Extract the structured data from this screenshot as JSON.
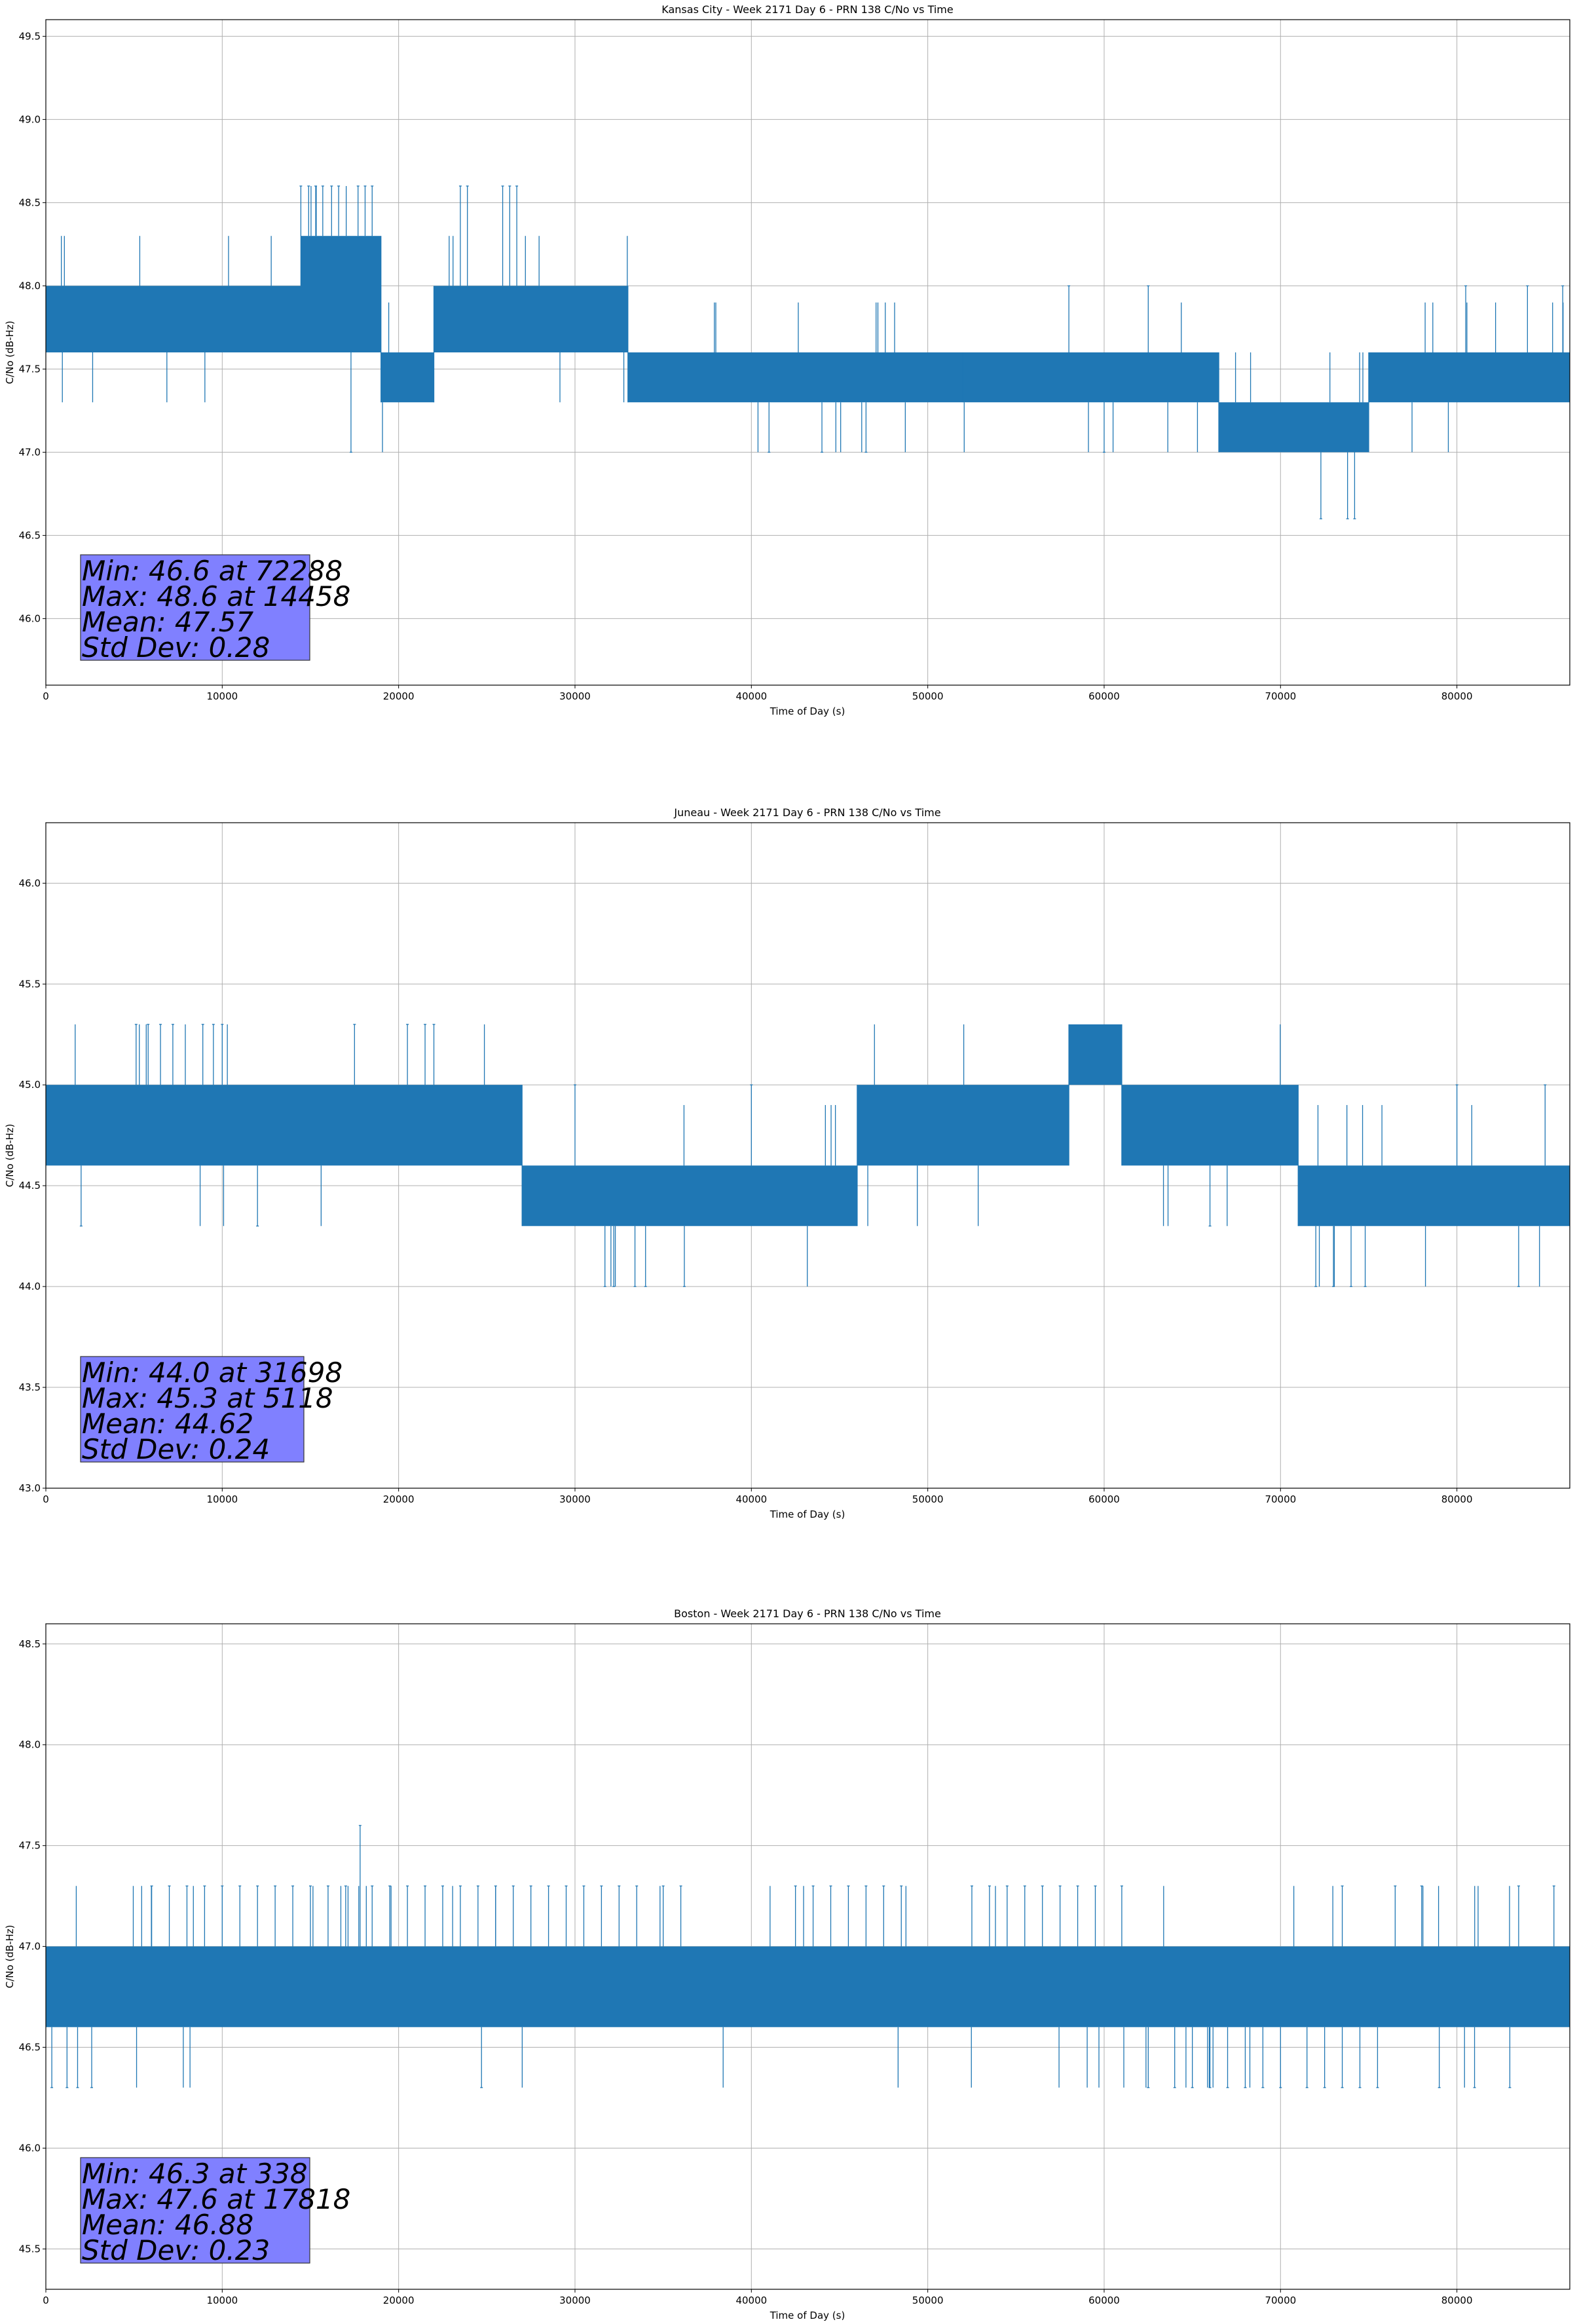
{
  "chart_data": [
    {
      "type": "line",
      "title": "Kansas City - Week 2171 Day 6 - PRN 138 C/No vs Time",
      "xlabel": "Time of Day (s)",
      "ylabel": "C/No (dB-Hz)",
      "xlim": [
        0,
        86400
      ],
      "ylim": [
        45.6,
        49.6
      ],
      "xticks": [
        0,
        10000,
        20000,
        30000,
        40000,
        50000,
        60000,
        70000,
        80000
      ],
      "xtick_labels": [
        "0",
        "10000",
        "20000",
        "30000",
        "40000",
        "50000",
        "60000",
        "70000",
        "80000"
      ],
      "yticks": [
        46.0,
        46.5,
        47.0,
        47.5,
        48.0,
        48.5,
        49.0,
        49.5
      ],
      "ytick_labels": [
        "46.0",
        "46.5",
        "47.0",
        "47.5",
        "48.0",
        "48.5",
        "49.0",
        "49.5"
      ],
      "grid": true,
      "series_color": "#1f77b4",
      "segments": [
        {
          "start": 0,
          "end": 14500,
          "low": 47.6,
          "high": 48.0
        },
        {
          "start": 14500,
          "end": 19000,
          "low": 47.6,
          "high": 48.3
        },
        {
          "start": 19000,
          "end": 22000,
          "low": 47.3,
          "high": 47.6
        },
        {
          "start": 22000,
          "end": 33000,
          "low": 47.6,
          "high": 48.0
        },
        {
          "start": 33000,
          "end": 52000,
          "low": 47.3,
          "high": 47.6
        },
        {
          "start": 52000,
          "end": 66500,
          "low": 47.3,
          "high": 47.6
        },
        {
          "start": 66500,
          "end": 75000,
          "low": 47.0,
          "high": 47.3
        },
        {
          "start": 75000,
          "end": 86400,
          "low": 47.3,
          "high": 47.6
        }
      ],
      "spikes": [
        {
          "x": 14458,
          "y": 48.6
        },
        {
          "x": 14900,
          "y": 48.6
        },
        {
          "x": 15300,
          "y": 48.6
        },
        {
          "x": 15700,
          "y": 48.6
        },
        {
          "x": 16200,
          "y": 48.6
        },
        {
          "x": 16600,
          "y": 48.6
        },
        {
          "x": 17700,
          "y": 48.6
        },
        {
          "x": 18100,
          "y": 48.6
        },
        {
          "x": 18500,
          "y": 48.6
        },
        {
          "x": 23500,
          "y": 48.6
        },
        {
          "x": 23900,
          "y": 48.6
        },
        {
          "x": 25900,
          "y": 48.6
        },
        {
          "x": 26300,
          "y": 48.6
        },
        {
          "x": 26700,
          "y": 48.6
        },
        {
          "x": 17300,
          "y": 47.0
        },
        {
          "x": 72288,
          "y": 46.6
        },
        {
          "x": 73800,
          "y": 46.6
        },
        {
          "x": 74200,
          "y": 46.6
        },
        {
          "x": 58000,
          "y": 48.0
        },
        {
          "x": 62500,
          "y": 48.0
        },
        {
          "x": 80500,
          "y": 48.0
        },
        {
          "x": 84000,
          "y": 48.0
        },
        {
          "x": 86000,
          "y": 48.0
        },
        {
          "x": 41000,
          "y": 47.0
        },
        {
          "x": 44000,
          "y": 47.0
        },
        {
          "x": 46500,
          "y": 47.0
        },
        {
          "x": 60000,
          "y": 47.0
        }
      ],
      "stats": [
        "Min: 46.6 at 72288",
        "Max: 48.6 at 14458",
        "Mean: 47.57",
        "Std Dev: 0.28"
      ]
    },
    {
      "type": "line",
      "title": "Juneau - Week 2171 Day 6 - PRN 138 C/No vs Time",
      "xlabel": "Time of Day (s)",
      "ylabel": "C/No (dB-Hz)",
      "xlim": [
        0,
        86400
      ],
      "ylim": [
        43.0,
        46.3
      ],
      "xticks": [
        0,
        10000,
        20000,
        30000,
        40000,
        50000,
        60000,
        70000,
        80000
      ],
      "xtick_labels": [
        "0",
        "10000",
        "20000",
        "30000",
        "40000",
        "50000",
        "60000",
        "70000",
        "80000"
      ],
      "yticks": [
        43.0,
        43.5,
        44.0,
        44.5,
        45.0,
        45.5,
        46.0
      ],
      "ytick_labels": [
        "43.0",
        "43.5",
        "44.0",
        "44.5",
        "45.0",
        "45.5",
        "46.0"
      ],
      "grid": true,
      "series_color": "#1f77b4",
      "segments": [
        {
          "start": 0,
          "end": 27000,
          "low": 44.6,
          "high": 45.0
        },
        {
          "start": 27000,
          "end": 46000,
          "low": 44.3,
          "high": 44.6
        },
        {
          "start": 46000,
          "end": 58000,
          "low": 44.6,
          "high": 45.0
        },
        {
          "start": 58000,
          "end": 61000,
          "low": 45.0,
          "high": 45.3
        },
        {
          "start": 61000,
          "end": 71000,
          "low": 44.6,
          "high": 45.0
        },
        {
          "start": 71000,
          "end": 86400,
          "low": 44.3,
          "high": 44.6
        }
      ],
      "spikes": [
        {
          "x": 5118,
          "y": 45.3
        },
        {
          "x": 5800,
          "y": 45.3
        },
        {
          "x": 6500,
          "y": 45.3
        },
        {
          "x": 7200,
          "y": 45.3
        },
        {
          "x": 8900,
          "y": 45.3
        },
        {
          "x": 9500,
          "y": 45.3
        },
        {
          "x": 10000,
          "y": 45.3
        },
        {
          "x": 17500,
          "y": 45.3
        },
        {
          "x": 20500,
          "y": 45.3
        },
        {
          "x": 21500,
          "y": 45.3
        },
        {
          "x": 22000,
          "y": 45.3
        },
        {
          "x": 31698,
          "y": 44.0
        },
        {
          "x": 32200,
          "y": 44.0
        },
        {
          "x": 33400,
          "y": 44.0
        },
        {
          "x": 34000,
          "y": 44.0
        },
        {
          "x": 36200,
          "y": 44.0
        },
        {
          "x": 72000,
          "y": 44.0
        },
        {
          "x": 73000,
          "y": 44.0
        },
        {
          "x": 74000,
          "y": 44.0
        },
        {
          "x": 74800,
          "y": 44.0
        },
        {
          "x": 83500,
          "y": 44.0
        },
        {
          "x": 2000,
          "y": 44.3
        },
        {
          "x": 12000,
          "y": 44.3
        },
        {
          "x": 30000,
          "y": 45.0
        },
        {
          "x": 40000,
          "y": 45.0
        },
        {
          "x": 66000,
          "y": 44.3
        },
        {
          "x": 80000,
          "y": 45.0
        },
        {
          "x": 85000,
          "y": 45.0
        }
      ],
      "stats": [
        "Min: 44.0 at 31698",
        "Max: 45.3 at 5118",
        "Mean: 44.62",
        "Std Dev: 0.24"
      ]
    },
    {
      "type": "line",
      "title": "Boston - Week 2171 Day 6 - PRN 138 C/No vs Time",
      "xlabel": "Time of Day (s)",
      "ylabel": "C/No (dB-Hz)",
      "xlim": [
        0,
        86400
      ],
      "ylim": [
        45.3,
        48.6
      ],
      "xticks": [
        0,
        10000,
        20000,
        30000,
        40000,
        50000,
        60000,
        70000,
        80000
      ],
      "xtick_labels": [
        "0",
        "10000",
        "20000",
        "30000",
        "40000",
        "50000",
        "60000",
        "70000",
        "80000"
      ],
      "yticks": [
        45.5,
        46.0,
        46.5,
        47.0,
        47.5,
        48.0,
        48.5
      ],
      "ytick_labels": [
        "45.5",
        "46.0",
        "46.5",
        "47.0",
        "47.5",
        "48.0",
        "48.5"
      ],
      "grid": true,
      "series_color": "#1f77b4",
      "segments": [
        {
          "start": 0,
          "end": 86400,
          "low": 46.6,
          "high": 47.0
        }
      ],
      "spikes": [
        {
          "x": 6000,
          "y": 47.3
        },
        {
          "x": 7000,
          "y": 47.3
        },
        {
          "x": 8000,
          "y": 47.3
        },
        {
          "x": 9000,
          "y": 47.3
        },
        {
          "x": 10000,
          "y": 47.3
        },
        {
          "x": 11000,
          "y": 47.3
        },
        {
          "x": 12000,
          "y": 47.3
        },
        {
          "x": 13000,
          "y": 47.3
        },
        {
          "x": 14000,
          "y": 47.3
        },
        {
          "x": 15000,
          "y": 47.3
        },
        {
          "x": 16000,
          "y": 47.3
        },
        {
          "x": 17000,
          "y": 47.3
        },
        {
          "x": 17818,
          "y": 47.6
        },
        {
          "x": 18500,
          "y": 47.3
        },
        {
          "x": 19500,
          "y": 47.3
        },
        {
          "x": 20500,
          "y": 47.3
        },
        {
          "x": 21500,
          "y": 47.3
        },
        {
          "x": 22500,
          "y": 47.3
        },
        {
          "x": 23500,
          "y": 47.3
        },
        {
          "x": 24500,
          "y": 47.3
        },
        {
          "x": 25500,
          "y": 47.3
        },
        {
          "x": 26500,
          "y": 47.3
        },
        {
          "x": 27500,
          "y": 47.3
        },
        {
          "x": 28500,
          "y": 47.3
        },
        {
          "x": 29500,
          "y": 47.3
        },
        {
          "x": 30500,
          "y": 47.3
        },
        {
          "x": 31500,
          "y": 47.3
        },
        {
          "x": 32500,
          "y": 47.3
        },
        {
          "x": 33500,
          "y": 47.3
        },
        {
          "x": 35000,
          "y": 47.3
        },
        {
          "x": 36000,
          "y": 47.3
        },
        {
          "x": 42500,
          "y": 47.3
        },
        {
          "x": 43500,
          "y": 47.3
        },
        {
          "x": 44500,
          "y": 47.3
        },
        {
          "x": 45500,
          "y": 47.3
        },
        {
          "x": 46500,
          "y": 47.3
        },
        {
          "x": 47500,
          "y": 47.3
        },
        {
          "x": 48500,
          "y": 47.3
        },
        {
          "x": 52500,
          "y": 47.3
        },
        {
          "x": 53500,
          "y": 47.3
        },
        {
          "x": 54500,
          "y": 47.3
        },
        {
          "x": 55500,
          "y": 47.3
        },
        {
          "x": 56500,
          "y": 47.3
        },
        {
          "x": 57500,
          "y": 47.3
        },
        {
          "x": 58500,
          "y": 47.3
        },
        {
          "x": 59500,
          "y": 47.3
        },
        {
          "x": 61000,
          "y": 47.3
        },
        {
          "x": 73500,
          "y": 47.3
        },
        {
          "x": 76500,
          "y": 47.3
        },
        {
          "x": 78000,
          "y": 47.3
        },
        {
          "x": 83500,
          "y": 47.3
        },
        {
          "x": 85500,
          "y": 47.3
        },
        {
          "x": 338,
          "y": 46.3
        },
        {
          "x": 1200,
          "y": 46.3
        },
        {
          "x": 1800,
          "y": 46.3
        },
        {
          "x": 2600,
          "y": 46.3
        },
        {
          "x": 24700,
          "y": 46.3
        },
        {
          "x": 62500,
          "y": 46.3
        },
        {
          "x": 64000,
          "y": 46.3
        },
        {
          "x": 65000,
          "y": 46.3
        },
        {
          "x": 66000,
          "y": 46.3
        },
        {
          "x": 67000,
          "y": 46.3
        },
        {
          "x": 68000,
          "y": 46.3
        },
        {
          "x": 69000,
          "y": 46.3
        },
        {
          "x": 70000,
          "y": 46.3
        },
        {
          "x": 71500,
          "y": 46.3
        },
        {
          "x": 72500,
          "y": 46.3
        },
        {
          "x": 73500,
          "y": 46.3
        },
        {
          "x": 74500,
          "y": 46.3
        },
        {
          "x": 75500,
          "y": 46.3
        },
        {
          "x": 79000,
          "y": 46.3
        },
        {
          "x": 81000,
          "y": 46.3
        },
        {
          "x": 83000,
          "y": 46.3
        }
      ],
      "stats": [
        "Min: 46.3 at 338",
        "Max: 47.6 at 17818",
        "Mean: 46.88",
        "Std Dev: 0.23"
      ]
    }
  ]
}
